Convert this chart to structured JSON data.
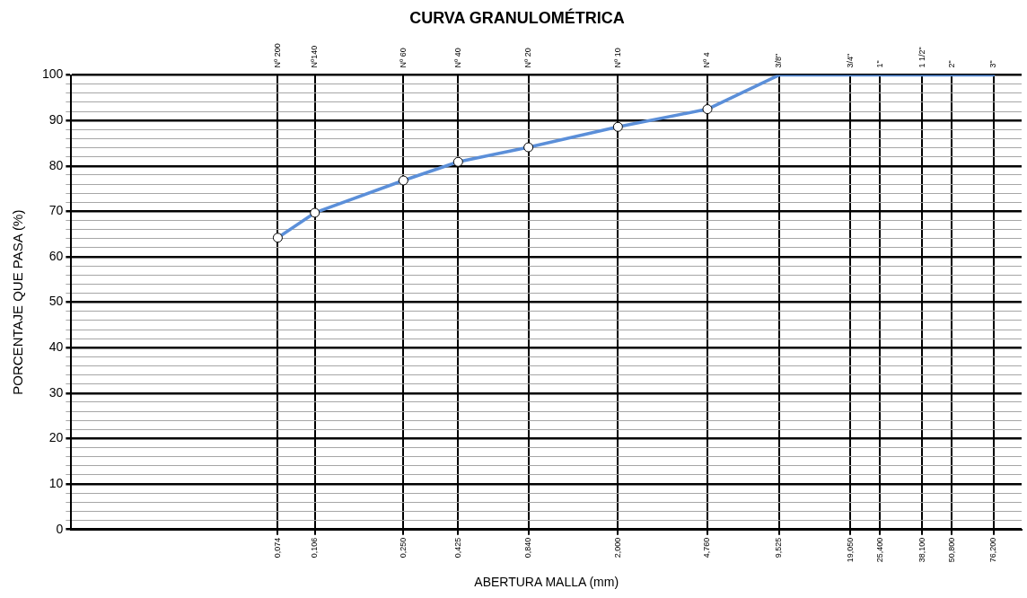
{
  "chart_data": {
    "type": "line",
    "title": "CURVA GRANULOMÉTRICA",
    "xlabel": "ABERTURA MALLA (mm)",
    "ylabel": "PORCENTAJE QUE PASA (%)",
    "log": "x",
    "grid": true,
    "legend": false,
    "line_style": "solid",
    "xlim": [
      0.01,
      100
    ],
    "ylim": [
      0,
      100
    ],
    "xticks": [
      {
        "value": 0.074,
        "label": "0,074"
      },
      {
        "value": 0.106,
        "label": "0,106"
      },
      {
        "value": 0.25,
        "label": "0,250"
      },
      {
        "value": 0.425,
        "label": "0,425"
      },
      {
        "value": 0.84,
        "label": "0,840"
      },
      {
        "value": 2.0,
        "label": "2,000"
      },
      {
        "value": 4.76,
        "label": "4,760"
      },
      {
        "value": 9.525,
        "label": "9,525"
      },
      {
        "value": 19.05,
        "label": "19,050"
      },
      {
        "value": 25.4,
        "label": "25,400"
      },
      {
        "value": 38.1,
        "label": "38,100"
      },
      {
        "value": 50.8,
        "label": "50,800"
      },
      {
        "value": 76.2,
        "label": "76,200"
      }
    ],
    "annotations": [
      "Nº 200",
      "Nº140",
      "Nº 60",
      "Nº 40",
      "Nº 20",
      "Nº 10",
      "Nº 4",
      "3/8\"",
      "3/4\"",
      "1\"",
      "1 1/2\"",
      "2\"",
      "3\""
    ],
    "yticks": [
      0,
      {
        "value": 2,
        "label": null
      },
      {
        "value": 4,
        "label": null
      },
      {
        "value": 6,
        "label": null
      },
      {
        "value": 8,
        "label": null
      },
      10,
      {
        "value": 12,
        "label": null
      },
      {
        "value": 14,
        "label": null
      },
      {
        "value": 16,
        "label": null
      },
      {
        "value": 18,
        "label": null
      },
      20,
      {
        "value": 22,
        "label": null
      },
      {
        "value": 24,
        "label": null
      },
      {
        "value": 26,
        "label": null
      },
      {
        "value": 28,
        "label": null
      },
      30,
      {
        "value": 32,
        "label": null
      },
      {
        "value": 34,
        "label": null
      },
      {
        "value": 36,
        "label": null
      },
      {
        "value": 38,
        "label": null
      },
      40,
      {
        "value": 42,
        "label": null
      },
      {
        "value": 44,
        "label": null
      },
      {
        "value": 46,
        "label": null
      },
      {
        "value": 48,
        "label": null
      },
      50,
      {
        "value": 52,
        "label": null
      },
      {
        "value": 54,
        "label": null
      },
      {
        "value": 56,
        "label": null
      },
      {
        "value": 58,
        "label": null
      },
      60,
      {
        "value": 62,
        "label": null
      },
      {
        "value": 64,
        "label": null
      },
      {
        "value": 66,
        "label": null
      },
      {
        "value": 68,
        "label": null
      },
      70,
      {
        "value": 72,
        "label": null
      },
      {
        "value": 74,
        "label": null
      },
      {
        "value": 76,
        "label": null
      },
      {
        "value": 78,
        "label": null
      },
      80,
      {
        "value": 82,
        "label": null
      },
      {
        "value": 84,
        "label": null
      },
      {
        "value": 86,
        "label": null
      },
      {
        "value": 88,
        "label": null
      },
      90,
      {
        "value": 92,
        "label": null
      },
      {
        "value": 94,
        "label": null
      },
      {
        "value": 96,
        "label": null
      },
      {
        "value": 98,
        "label": null
      },
      100
    ],
    "series": [
      {
        "color": "#5b8fd9",
        "marker": "circle",
        "x": [
          0.074,
          0.106,
          0.25,
          0.425,
          0.84,
          2.0,
          4.76
        ],
        "values": [
          64.2,
          69.7,
          76.8,
          80.9,
          84.1,
          88.6,
          92.5
        ]
      },
      {
        "color": "#5b8fd9",
        "marker": "none",
        "x": [
          4.76,
          9.525,
          19.05,
          25.4,
          38.1,
          50.8,
          76.2
        ],
        "values": [
          92.5,
          100,
          100,
          100,
          100,
          100,
          100
        ]
      }
    ]
  }
}
